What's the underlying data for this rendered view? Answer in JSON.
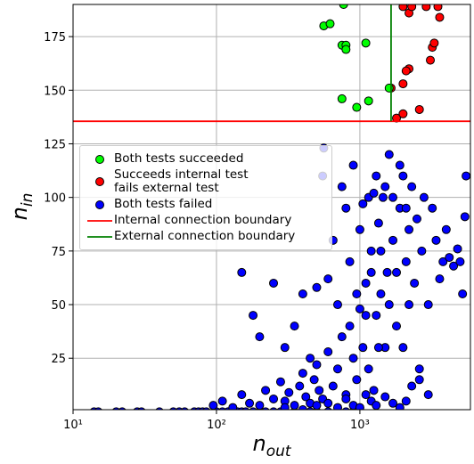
{
  "chart_data": {
    "type": "scatter",
    "xlabel": {
      "base": "n",
      "sub": "out"
    },
    "ylabel": {
      "base": "n",
      "sub": "in"
    },
    "xscale": "log",
    "grid": true,
    "legend": "center left",
    "xlim": [
      10,
      5900
    ],
    "ylim": [
      1,
      190
    ],
    "xticks": [
      {
        "value": 10,
        "label": "10¹"
      },
      {
        "value": 100,
        "label": "10²"
      },
      {
        "value": 1000,
        "label": "10³"
      }
    ],
    "yticks": [
      25,
      50,
      75,
      100,
      125,
      150,
      175
    ],
    "series": [
      {
        "name": "Both tests succeeded",
        "color": "#00ff00",
        "x": [
          560,
          620,
          750,
          800,
          800,
          1100,
          1150,
          750,
          950,
          1600,
          770
        ],
        "values": [
          180,
          181,
          171,
          171,
          169,
          172,
          145,
          146,
          142,
          151,
          190
        ]
      },
      {
        "name": "Succeeds internal test\nfails external test",
        "color": "#ff0000",
        "x": [
          2000,
          2200,
          2100,
          1800,
          2000,
          2600,
          3100,
          3200,
          3300,
          3600,
          2200,
          2300,
          2900,
          3500,
          1650,
          2000
        ],
        "values": [
          153,
          160,
          159,
          137,
          139,
          141,
          164,
          170,
          172,
          184,
          186,
          189,
          189,
          189,
          151,
          189
        ]
      },
      {
        "name": "Both tests failed",
        "color": "#0000ff",
        "x": [
          14,
          15,
          20,
          22,
          28,
          30,
          40,
          50,
          55,
          60,
          70,
          75,
          80,
          85,
          100,
          110,
          120,
          130,
          140,
          150,
          160,
          180,
          200,
          220,
          250,
          280,
          300,
          350,
          400,
          450,
          500,
          600,
          700,
          800,
          900,
          1000,
          95,
          110,
          130,
          150,
          170,
          200,
          220,
          250,
          280,
          300,
          320,
          350,
          380,
          400,
          420,
          450,
          480,
          500,
          520,
          550,
          600,
          650,
          700,
          750,
          800,
          850,
          900,
          950,
          1000,
          1050,
          1100,
          1150,
          1200,
          1250,
          1300,
          1350,
          1400,
          1450,
          1500,
          1550,
          1600,
          1700,
          1800,
          1900,
          2000,
          2100,
          2200,
          2300,
          2400,
          2500,
          2600,
          2700,
          2800,
          3000,
          3200,
          3400,
          3600,
          3800,
          4000,
          4200,
          4500,
          4800,
          5000,
          5200,
          5400,
          5500,
          600,
          650,
          700,
          750,
          800,
          850,
          900,
          950,
          1000,
          1050,
          1100,
          1150,
          1200,
          1250,
          1300,
          1350,
          1400,
          1500,
          1600,
          1700,
          1800,
          1900,
          2000,
          2100,
          2200,
          150,
          180,
          200,
          250,
          300,
          350,
          400,
          450,
          500,
          550,
          560,
          300,
          400,
          500,
          600,
          700,
          800,
          900,
          1000,
          1100,
          1200,
          1300,
          1500,
          1700,
          1900,
          2100,
          2300,
          2600,
          3000
        ],
        "values": [
          0,
          0,
          0,
          0,
          0,
          0,
          0,
          0,
          0,
          0,
          0,
          0,
          0,
          0,
          0,
          0,
          0,
          0,
          0,
          0,
          0,
          0,
          0,
          0,
          0,
          0,
          0,
          0,
          0,
          0,
          0,
          0,
          0,
          0,
          0,
          0,
          3,
          5,
          2,
          8,
          4,
          3,
          10,
          6,
          14,
          5,
          9,
          3,
          12,
          18,
          7,
          4,
          15,
          22,
          10,
          6,
          28,
          12,
          20,
          35,
          8,
          40,
          25,
          15,
          48,
          30,
          60,
          20,
          75,
          10,
          45,
          88,
          55,
          100,
          30,
          65,
          120,
          80,
          40,
          95,
          110,
          70,
          85,
          105,
          60,
          90,
          15,
          75,
          100,
          50,
          95,
          80,
          62,
          70,
          85,
          72,
          68,
          76,
          70,
          55,
          91,
          110,
          62,
          80,
          50,
          105,
          95,
          70,
          115,
          55,
          85,
          97,
          45,
          100,
          65,
          102,
          110,
          30,
          75,
          105,
          50,
          100,
          65,
          115,
          30,
          95,
          50,
          65,
          45,
          35,
          60,
          30,
          40,
          55,
          25,
          58,
          110,
          123,
          2,
          1,
          3,
          4,
          2,
          6,
          3,
          2,
          8,
          5,
          3,
          7,
          4,
          2,
          5,
          12,
          20,
          8
        ]
      }
    ],
    "hline": {
      "name": "Internal connection boundary",
      "value": 135.5,
      "color": "#ff0000"
    },
    "vline": {
      "name": "External connection boundary",
      "value": 1650,
      "from": 135.5,
      "color": "#008000"
    }
  }
}
